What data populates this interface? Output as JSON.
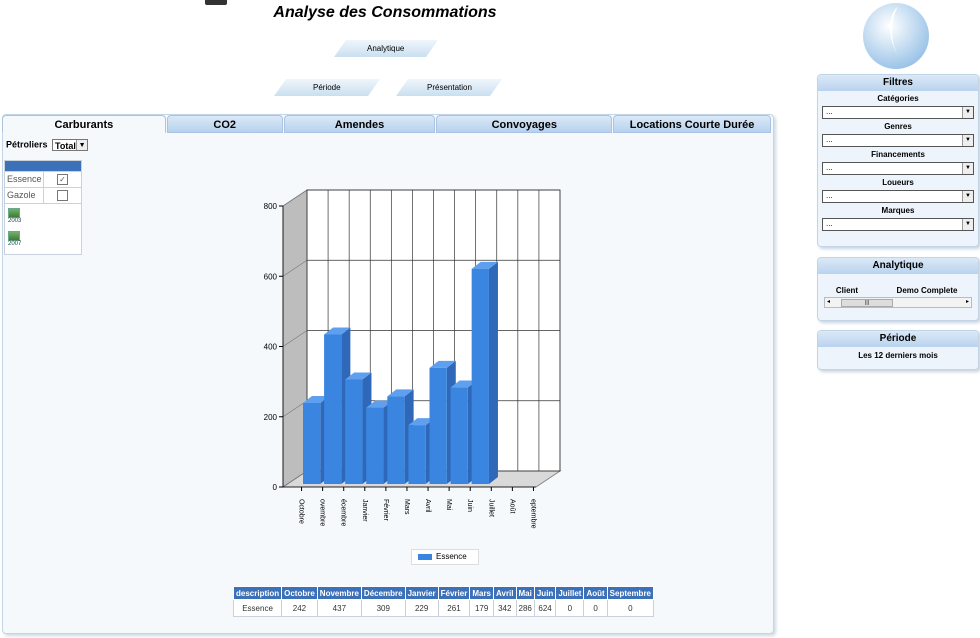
{
  "title": "Analyse des Consommations",
  "top_tabs": {
    "analytique": "Analytique",
    "periode": "Période",
    "presentation": "Présentation"
  },
  "tabs": [
    {
      "label": "Carburants",
      "active": true
    },
    {
      "label": "CO2"
    },
    {
      "label": "Amendes"
    },
    {
      "label": "Convoyages"
    },
    {
      "label": "Locations Courte Durée"
    }
  ],
  "petroliers": {
    "label": "Pétroliers",
    "selected": "Total"
  },
  "fuel_types": [
    {
      "label": "Essence",
      "checked": true
    },
    {
      "label": "Gazole",
      "checked": false
    }
  ],
  "export_icons": [
    "2003",
    "2007"
  ],
  "chart_data": {
    "type": "bar",
    "categories": [
      "Octobre",
      "Novembre",
      "Décembre",
      "Janvier",
      "Février",
      "Mars",
      "Avril",
      "Mai",
      "Juin",
      "Juillet",
      "Août",
      "Septembre"
    ],
    "tick_labels": [
      "Octobre",
      "ovembre",
      "écembre",
      "Janvier",
      "Février",
      "Mars",
      "Avril",
      "Mai",
      "Juin",
      "Juillet",
      "Août",
      "eptembre"
    ],
    "series": [
      {
        "name": "Essence",
        "values": [
          242,
          437,
          309,
          229,
          261,
          179,
          342,
          286,
          624,
          0,
          0,
          0
        ]
      }
    ],
    "ylim": [
      0,
      800
    ],
    "yticks": [
      0,
      200,
      400,
      600,
      800
    ],
    "grid": true,
    "legend": "bottom",
    "color": "#3a85e0"
  },
  "table": {
    "header": [
      "description",
      "Octobre",
      "Novembre",
      "Décembre",
      "Janvier",
      "Février",
      "Mars",
      "Avril",
      "Mai",
      "Juin",
      "Juillet",
      "Août",
      "Septembre"
    ],
    "row": [
      "Essence",
      "242",
      "437",
      "309",
      "229",
      "261",
      "179",
      "342",
      "286",
      "624",
      "0",
      "0",
      "0"
    ]
  },
  "filters": {
    "title": "Filtres",
    "items": [
      {
        "label": "Catégories",
        "value": "..."
      },
      {
        "label": "Genres",
        "value": "..."
      },
      {
        "label": "Financements",
        "value": "..."
      },
      {
        "label": "Loueurs",
        "value": "..."
      },
      {
        "label": "Marques",
        "value": "..."
      }
    ]
  },
  "analytique": {
    "title": "Analytique",
    "client_label": "Client",
    "client_value": "Demo Complete"
  },
  "periode": {
    "title": "Période",
    "value": "Les 12 derniers mois"
  }
}
